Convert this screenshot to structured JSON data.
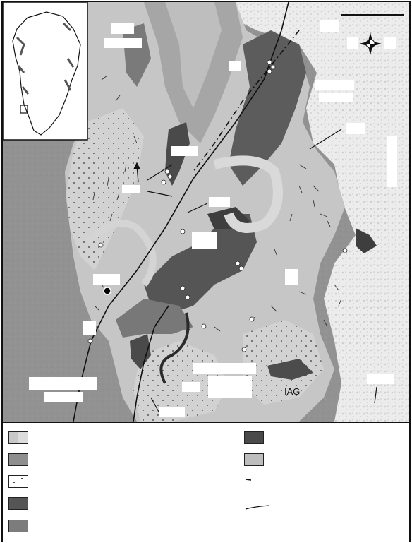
{
  "map": {
    "labels": {
      "iag": "IAG"
    },
    "inset": {
      "region": "Greenland"
    },
    "icons": {
      "north_arrow": "compass-rose-icon",
      "scale_bar": "scale-bar-icon"
    },
    "colors": {
      "background_gneiss": "#8e8e8e",
      "light_gneiss": "#c2c2c2",
      "mid_grey": "#a0a0a0",
      "dark_unit": "#5a5a5a",
      "darkest_unit": "#3e3e3e",
      "speckled_east": "#e6e6e6",
      "line": "#111111"
    }
  },
  "legend": {
    "items": [
      {
        "symbol": "split-light-grey"
      },
      {
        "symbol": "mid-grey"
      },
      {
        "symbol": "dotted-white"
      },
      {
        "symbol": "dark-grey"
      },
      {
        "symbol": "medium-dark-grey"
      },
      {
        "symbol": "darkest-grey"
      },
      {
        "symbol": "light-grey"
      },
      {
        "symbol": "line-segment"
      },
      {
        "symbol": "curve-line"
      }
    ]
  }
}
